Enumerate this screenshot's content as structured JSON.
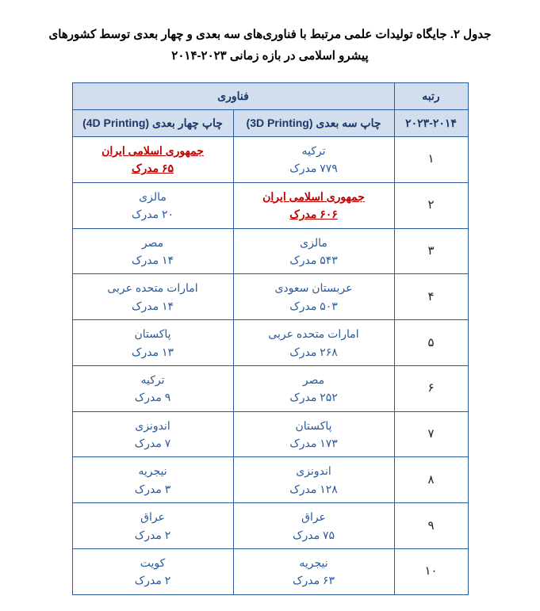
{
  "title": "جدول ۲. جایگاه تولیدات علمی مرتبط با فناوری‌های سه بعدی و چهار بعدی توسط کشورهای پیشرو اسلامی در بازه زمانی ۲۰۲۳-۲۰۱۴",
  "headers": {
    "rank": "رتبه",
    "rank_sub": "۲۰۲۳-۲۰۱۴",
    "tech": "فناوری",
    "col3d": "چاپ سه بعدی (3D Printing)",
    "col4d": "چاپ چهار بعدی (4D Printing)"
  },
  "rows": [
    {
      "rank": "۱",
      "c3d": {
        "country": "ترکیه",
        "docs": "۷۷۹ مدرک",
        "iran": false
      },
      "c4d": {
        "country": "جمهوری اسلامی ایران",
        "docs": "۶۵ مدرک",
        "iran": true
      }
    },
    {
      "rank": "۲",
      "c3d": {
        "country": "جمهوری اسلامی ایران",
        "docs": "۶۰۶ مدرک",
        "iran": true
      },
      "c4d": {
        "country": "مالزی",
        "docs": "۲۰ مدرک",
        "iran": false
      }
    },
    {
      "rank": "۳",
      "c3d": {
        "country": "مالزی",
        "docs": "۵۴۳ مدرک",
        "iran": false
      },
      "c4d": {
        "country": "مصر",
        "docs": "۱۴ مدرک",
        "iran": false
      }
    },
    {
      "rank": "۴",
      "c3d": {
        "country": "عربستان سعودی",
        "docs": "۵۰۳ مدرک",
        "iran": false
      },
      "c4d": {
        "country": "امارات متحده عربی",
        "docs": "۱۴ مدرک",
        "iran": false
      }
    },
    {
      "rank": "۵",
      "c3d": {
        "country": "امارات متحده عربی",
        "docs": "۲۶۸ مدرک",
        "iran": false
      },
      "c4d": {
        "country": "پاکستان",
        "docs": "۱۳ مدرک",
        "iran": false
      }
    },
    {
      "rank": "۶",
      "c3d": {
        "country": "مصر",
        "docs": "۲۵۲ مدرک",
        "iran": false
      },
      "c4d": {
        "country": "ترکیه",
        "docs": "۹ مدرک",
        "iran": false
      }
    },
    {
      "rank": "۷",
      "c3d": {
        "country": "پاکستان",
        "docs": "۱۷۳ مدرک",
        "iran": false
      },
      "c4d": {
        "country": "اندونزی",
        "docs": "۷ مدرک",
        "iran": false
      }
    },
    {
      "rank": "۸",
      "c3d": {
        "country": "اندونزی",
        "docs": "۱۲۸ مدرک",
        "iran": false
      },
      "c4d": {
        "country": "نیجریه",
        "docs": "۳ مدرک",
        "iran": false
      }
    },
    {
      "rank": "۹",
      "c3d": {
        "country": "عراق",
        "docs": "۷۵ مدرک",
        "iran": false
      },
      "c4d": {
        "country": "عراق",
        "docs": "۲ مدرک",
        "iran": false
      }
    },
    {
      "rank": "۱۰",
      "c3d": {
        "country": "نیجریه",
        "docs": "۶۳ مدرک",
        "iran": false
      },
      "c4d": {
        "country": "کویت",
        "docs": "۲ مدرک",
        "iran": false
      }
    }
  ]
}
